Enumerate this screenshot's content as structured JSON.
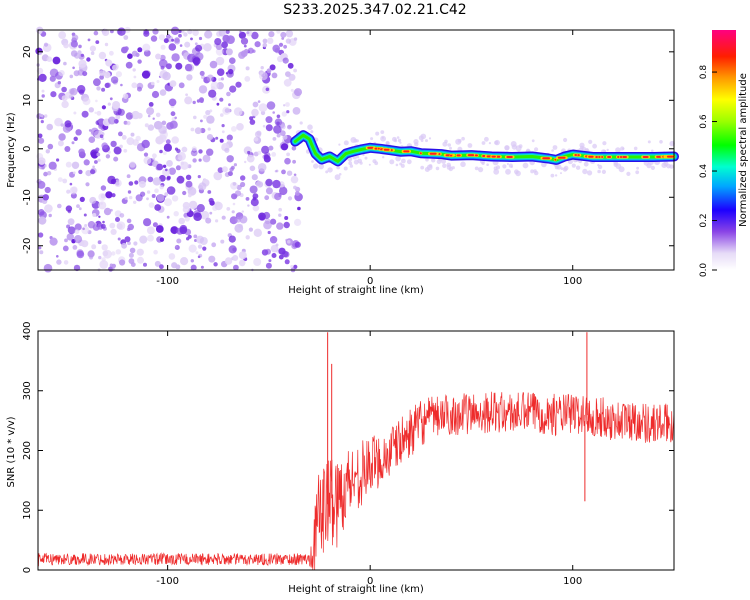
{
  "title": "S233.2025.347.02.21.C42",
  "chart_data": [
    {
      "type": "heatmap",
      "name": "spectrogram",
      "xlabel": "Height of straight line (km)",
      "ylabel": "Frequency (Hz)",
      "xlim": [
        -164,
        150
      ],
      "ylim": [
        -25,
        24.5
      ],
      "xticks": [
        -100,
        0,
        100
      ],
      "yticks": [
        -20,
        -10,
        0,
        10,
        20
      ],
      "noise_region_x": [
        -164,
        -37
      ],
      "signal_track": {
        "x": [
          -37,
          -33,
          -30,
          -27,
          -24,
          -20,
          -16,
          -12,
          -8,
          -4,
          0,
          5,
          10,
          15,
          20,
          25,
          30,
          35,
          40,
          50,
          60,
          70,
          80,
          88,
          92,
          96,
          100,
          110,
          120,
          130,
          140,
          150
        ],
        "freq": [
          1.5,
          2.8,
          2.0,
          -1.0,
          -2.2,
          -1.6,
          -2.6,
          -1.0,
          -0.5,
          -0.1,
          0.2,
          0.0,
          -0.3,
          -0.6,
          -0.5,
          -0.9,
          -1.0,
          -1.1,
          -1.4,
          -1.3,
          -1.6,
          -1.7,
          -1.6,
          -2.0,
          -2.3,
          -1.6,
          -1.2,
          -1.7,
          -1.7,
          -1.7,
          -1.7,
          -1.6
        ]
      },
      "colorbar": {
        "label": "Normalized spectral amplitude",
        "range": [
          0,
          0.97
        ],
        "ticks": [
          "0.0",
          "0.2",
          "0.4",
          "0.6",
          "0.8"
        ],
        "tick_values": [
          0.0,
          0.2,
          0.4,
          0.6,
          0.8
        ]
      }
    },
    {
      "type": "line",
      "name": "snr",
      "xlabel": "Height of straight line (km)",
      "ylabel": "SNR (10 * v/v)",
      "xlim": [
        -164,
        150
      ],
      "ylim": [
        0,
        400
      ],
      "xticks": [
        -100,
        0,
        100
      ],
      "yticks": [
        0,
        100,
        200,
        300,
        400
      ],
      "color": "#ee2b2b",
      "envelope": {
        "x": [
          -164,
          -30,
          -28,
          -26,
          -24,
          -22,
          -20,
          -18,
          -16,
          -14,
          -10,
          -5,
          0,
          5,
          10,
          15,
          20,
          25,
          30,
          40,
          50,
          60,
          70,
          80,
          90,
          100,
          110,
          120,
          130,
          140,
          150
        ],
        "mean": [
          18,
          18,
          40,
          80,
          110,
          100,
          120,
          120,
          110,
          130,
          150,
          160,
          175,
          185,
          195,
          215,
          230,
          245,
          255,
          260,
          262,
          265,
          262,
          265,
          260,
          262,
          258,
          250,
          250,
          245,
          245
        ],
        "spread": [
          10,
          10,
          50,
          70,
          80,
          80,
          80,
          80,
          80,
          70,
          60,
          55,
          50,
          45,
          45,
          40,
          40,
          40,
          35,
          35,
          35,
          35,
          35,
          35,
          35,
          35,
          35,
          35,
          35,
          35,
          35
        ]
      },
      "spikes": [
        {
          "x": -21,
          "y": 398
        },
        {
          "x": -19,
          "y": 345
        },
        {
          "x": 107,
          "y": 398
        },
        {
          "x": 106,
          "y": 115
        }
      ]
    }
  ]
}
